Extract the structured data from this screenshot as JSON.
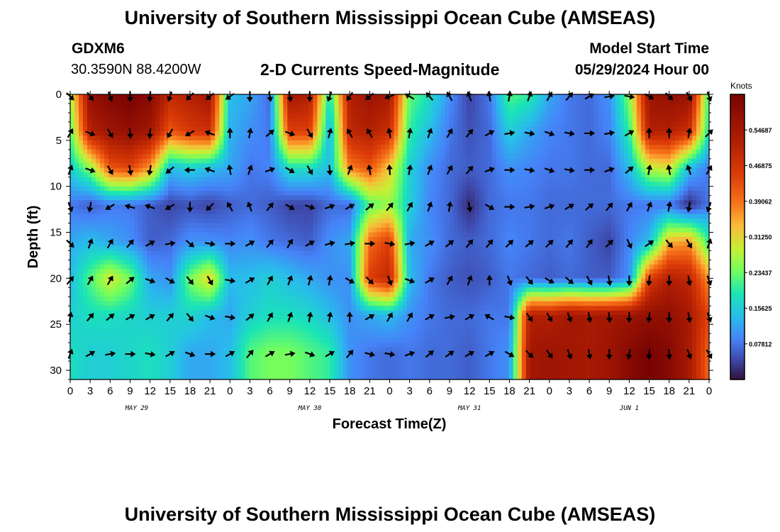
{
  "header": {
    "title": "University of Southern Mississippi Ocean Cube (AMSEAS)",
    "station": "GDXM6",
    "coords": "30.3590N  88.4200W",
    "subtitle": "2-D Currents Speed-Magnitude",
    "model_label": "Model Start Time",
    "model_time": "05/29/2024 Hour 00"
  },
  "footer": {
    "title": "University of Southern Mississippi Ocean Cube (AMSEAS)"
  },
  "chart_data": {
    "type": "heatmap",
    "title": "2-D Currents Speed-Magnitude",
    "xlabel": "Forecast Time(Z)",
    "ylabel": "Depth (ft)",
    "x_hours_range": [
      0,
      96
    ],
    "x_tick_labels": [
      "0",
      "3",
      "6",
      "9",
      "12",
      "15",
      "18",
      "21",
      "0",
      "3",
      "6",
      "9",
      "12",
      "15",
      "18",
      "21",
      "0",
      "3",
      "6",
      "9",
      "12",
      "15",
      "18",
      "21",
      "0",
      "3",
      "6",
      "9",
      "12",
      "15",
      "18",
      "21",
      "0"
    ],
    "date_labels": [
      {
        "label": "MAY 29",
        "hour": 10
      },
      {
        "label": "MAY 30",
        "hour": 36
      },
      {
        "label": "MAY 31",
        "hour": 60
      },
      {
        "label": "JUN 1",
        "hour": 84
      }
    ],
    "ylim": [
      0,
      31
    ],
    "y_ticks": [
      0,
      5,
      10,
      15,
      20,
      25,
      30
    ],
    "colorbar": {
      "unit": "Knots",
      "range": [
        0,
        0.625
      ],
      "labels": [
        "0.54687",
        "0.46875",
        "0.39062",
        "0.31250",
        "0.23437",
        "0.15625",
        "0.07812"
      ],
      "label_values": [
        0.54687,
        0.46875,
        0.39062,
        0.3125,
        0.23437,
        0.15625,
        0.07812
      ]
    },
    "depths": [
      0,
      4,
      8,
      12,
      16,
      20,
      24,
      28
    ],
    "grid_hours": [
      0,
      3,
      6,
      9,
      12,
      15,
      18,
      21,
      24,
      27,
      30,
      33,
      36,
      39,
      42,
      45,
      48,
      51,
      54,
      57,
      60,
      63,
      66,
      69,
      72,
      75,
      78,
      81,
      84,
      87,
      90,
      93,
      96
    ],
    "speed_knots": [
      [
        0.26,
        0.58,
        0.61,
        0.63,
        0.6,
        0.5,
        0.52,
        0.55,
        0.14,
        0.12,
        0.07,
        0.55,
        0.52,
        0.18,
        0.52,
        0.56,
        0.54,
        0.23,
        0.18,
        0.1,
        0.04,
        0.08,
        0.22,
        0.2,
        0.12,
        0.08,
        0.07,
        0.1,
        0.25,
        0.56,
        0.58,
        0.57,
        0.2
      ],
      [
        0.22,
        0.52,
        0.56,
        0.58,
        0.55,
        0.42,
        0.46,
        0.48,
        0.13,
        0.1,
        0.08,
        0.45,
        0.45,
        0.12,
        0.5,
        0.52,
        0.48,
        0.2,
        0.14,
        0.08,
        0.05,
        0.07,
        0.16,
        0.12,
        0.09,
        0.08,
        0.07,
        0.09,
        0.2,
        0.52,
        0.52,
        0.48,
        0.18
      ],
      [
        0.16,
        0.25,
        0.42,
        0.44,
        0.36,
        0.14,
        0.16,
        0.14,
        0.12,
        0.08,
        0.09,
        0.18,
        0.18,
        0.14,
        0.38,
        0.42,
        0.32,
        0.16,
        0.1,
        0.07,
        0.06,
        0.07,
        0.1,
        0.09,
        0.08,
        0.08,
        0.07,
        0.07,
        0.14,
        0.28,
        0.3,
        0.14,
        0.08
      ],
      [
        0.08,
        0.06,
        0.08,
        0.08,
        0.06,
        0.04,
        0.05,
        0.04,
        0.06,
        0.07,
        0.06,
        0.04,
        0.04,
        0.07,
        0.07,
        0.22,
        0.26,
        0.16,
        0.09,
        0.07,
        0.02,
        0.07,
        0.08,
        0.08,
        0.07,
        0.07,
        0.07,
        0.07,
        0.08,
        0.08,
        0.08,
        0.02,
        0.08
      ],
      [
        0.12,
        0.14,
        0.12,
        0.1,
        0.06,
        0.07,
        0.1,
        0.1,
        0.09,
        0.1,
        0.08,
        0.07,
        0.06,
        0.1,
        0.12,
        0.4,
        0.45,
        0.12,
        0.1,
        0.07,
        0.06,
        0.07,
        0.09,
        0.08,
        0.07,
        0.08,
        0.06,
        0.04,
        0.09,
        0.14,
        0.34,
        0.36,
        0.2
      ],
      [
        0.14,
        0.22,
        0.3,
        0.24,
        0.12,
        0.1,
        0.24,
        0.32,
        0.14,
        0.14,
        0.16,
        0.14,
        0.12,
        0.1,
        0.1,
        0.45,
        0.5,
        0.14,
        0.08,
        0.06,
        0.05,
        0.06,
        0.08,
        0.07,
        0.06,
        0.07,
        0.06,
        0.06,
        0.1,
        0.45,
        0.52,
        0.5,
        0.36
      ],
      [
        0.16,
        0.18,
        0.18,
        0.17,
        0.16,
        0.16,
        0.17,
        0.14,
        0.12,
        0.16,
        0.18,
        0.18,
        0.17,
        0.14,
        0.1,
        0.12,
        0.14,
        0.1,
        0.08,
        0.07,
        0.07,
        0.08,
        0.08,
        0.52,
        0.52,
        0.55,
        0.54,
        0.55,
        0.56,
        0.58,
        0.58,
        0.54,
        0.44
      ],
      [
        0.18,
        0.16,
        0.16,
        0.17,
        0.18,
        0.16,
        0.12,
        0.12,
        0.14,
        0.22,
        0.24,
        0.24,
        0.22,
        0.2,
        0.1,
        0.08,
        0.07,
        0.08,
        0.07,
        0.07,
        0.06,
        0.08,
        0.1,
        0.55,
        0.56,
        0.55,
        0.54,
        0.56,
        0.6,
        0.63,
        0.6,
        0.54,
        0.4
      ]
    ],
    "direction_deg": [
      [
        135,
        145,
        160,
        180,
        185,
        200,
        225,
        230,
        235,
        180,
        170,
        170,
        180,
        200,
        215,
        230,
        250,
        300,
        320,
        330,
        340,
        350,
        10,
        20,
        30,
        40,
        60,
        80,
        100,
        120,
        135,
        150,
        160
      ],
      [
        30,
        110,
        150,
        175,
        185,
        210,
        240,
        290,
        0,
        10,
        50,
        110,
        150,
        15,
        330,
        330,
        350,
        10,
        20,
        30,
        40,
        60,
        80,
        100,
        110,
        100,
        90,
        80,
        60,
        0,
        0,
        10,
        45
      ],
      [
        20,
        110,
        150,
        170,
        190,
        230,
        270,
        290,
        350,
        20,
        70,
        120,
        150,
        175,
        20,
        350,
        355,
        10,
        20,
        30,
        40,
        70,
        90,
        100,
        110,
        100,
        90,
        70,
        50,
        10,
        350,
        340,
        30
      ],
      [
        160,
        190,
        240,
        285,
        290,
        240,
        180,
        225,
        330,
        340,
        40,
        120,
        110,
        70,
        60,
        50,
        40,
        30,
        20,
        10,
        170,
        120,
        90,
        80,
        70,
        60,
        50,
        40,
        30,
        20,
        10,
        190,
        200
      ],
      [
        135,
        20,
        30,
        40,
        60,
        80,
        130,
        100,
        90,
        60,
        40,
        30,
        60,
        75,
        80,
        90,
        100,
        80,
        60,
        50,
        40,
        40,
        45,
        50,
        45,
        40,
        35,
        45,
        155,
        55,
        140,
        150,
        20
      ],
      [
        40,
        30,
        30,
        50,
        110,
        120,
        140,
        150,
        100,
        60,
        30,
        20,
        15,
        10,
        120,
        135,
        160,
        110,
        60,
        30,
        20,
        0,
        160,
        140,
        120,
        130,
        150,
        170,
        180,
        185,
        180,
        170,
        160
      ],
      [
        10,
        40,
        50,
        60,
        60,
        40,
        140,
        110,
        100,
        50,
        30,
        20,
        10,
        10,
        0,
        60,
        30,
        30,
        60,
        80,
        60,
        300,
        100,
        145,
        150,
        160,
        170,
        175,
        180,
        185,
        180,
        170,
        160
      ],
      [
        20,
        60,
        80,
        90,
        100,
        60,
        110,
        90,
        60,
        40,
        60,
        80,
        110,
        60,
        40,
        105,
        100,
        70,
        50,
        55,
        60,
        60,
        120,
        135,
        145,
        160,
        170,
        180,
        190,
        185,
        175,
        160,
        150
      ]
    ]
  }
}
